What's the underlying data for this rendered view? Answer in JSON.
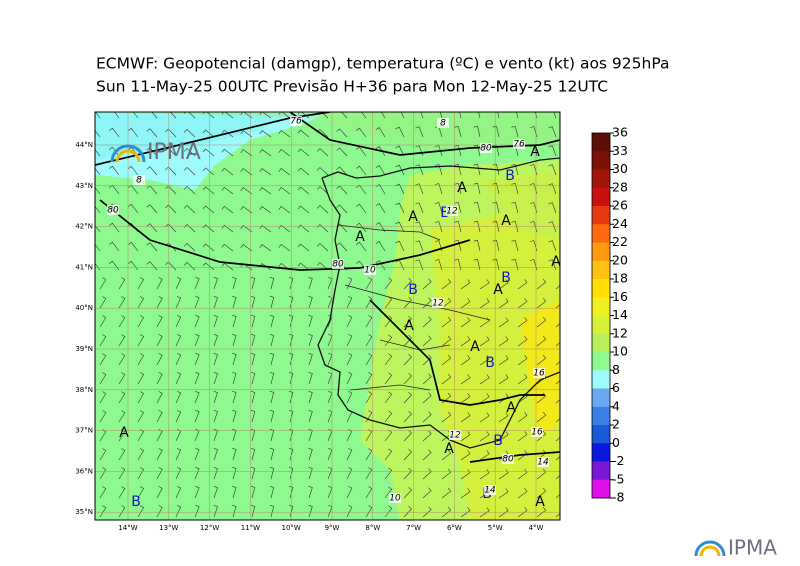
{
  "header": {
    "title_line1": "ECMWF:  Geopotencial (damgp), temperatura (ºC) e vento (kt) aos 925hPa",
    "title_line2": "Sun 11-May-25 00UTC Previsão H+36 para Mon 12-May-25 12UTC"
  },
  "map": {
    "lat_labels": [
      "44°N",
      "43°N",
      "42°N",
      "41°N",
      "40°N",
      "39°N",
      "38°N",
      "37°N",
      "36°N",
      "35°N"
    ],
    "lon_labels": [
      "14°W",
      "13°W",
      "12°W",
      "11°W",
      "10°W",
      "9°W",
      "8°W",
      "7°W",
      "6°W",
      "5°W",
      "4°W"
    ],
    "highs": [
      "A",
      "A",
      "A",
      "A",
      "A",
      "A",
      "A",
      "A",
      "A",
      "A",
      "A",
      "A",
      "A"
    ],
    "lows": [
      "B",
      "B",
      "B",
      "B",
      "B",
      "B",
      "B",
      "B"
    ],
    "contour_labels": [
      76,
      8,
      80,
      76,
      8,
      80,
      12,
      80,
      10,
      12,
      16,
      12,
      16,
      80,
      14,
      14,
      10
    ]
  },
  "colorbar": {
    "ticks": [
      36,
      33,
      30,
      28,
      26,
      24,
      22,
      20,
      18,
      16,
      14,
      12,
      10,
      8,
      6,
      4,
      2,
      0,
      -2,
      -5,
      -8
    ],
    "colors": [
      "#5c0f05",
      "#7c1205",
      "#a0150a",
      "#c81010",
      "#e83a10",
      "#ff6a10",
      "#ff9a10",
      "#ffc010",
      "#ffe000",
      "#f2ef20",
      "#d8f03a",
      "#b8f05a",
      "#8ef98e",
      "#9efbfb",
      "#6aa8f0",
      "#3a80e8",
      "#1a5ad8",
      "#0a18e0",
      "#7a18d8",
      "#e010e8"
    ]
  },
  "logos": {
    "map_logo": "IPMA",
    "footer_logo": "IPMA"
  }
}
